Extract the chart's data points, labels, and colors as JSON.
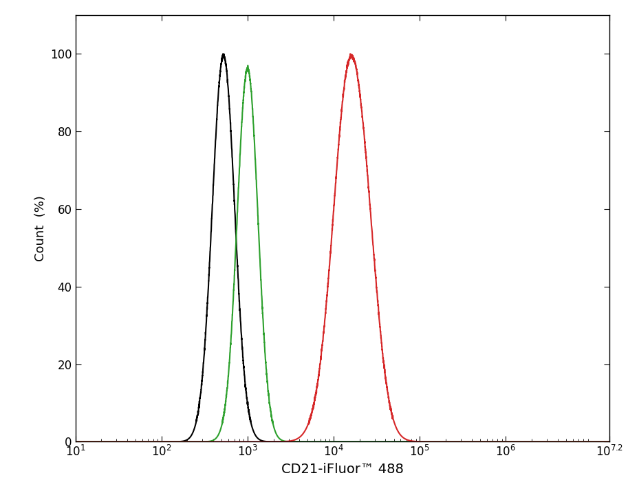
{
  "xlabel": "CD21-iFluor™ 488",
  "ylabel": "Count  (%)",
  "xlim_log": [
    1,
    7.2
  ],
  "ylim": [
    0,
    110
  ],
  "yticks": [
    0,
    20,
    40,
    60,
    80,
    100
  ],
  "xticks_log": [
    1,
    2,
    3,
    4,
    5,
    6,
    7.2
  ],
  "background_color": "#ffffff",
  "curves": {
    "black": {
      "color": "#000000",
      "mean_log": 2.72,
      "sigma_log": 0.13,
      "peak": 100
    },
    "green": {
      "color": "#2ca02c",
      "mean_log": 3.0,
      "sigma_log": 0.12,
      "peak": 97
    },
    "red": {
      "color": "#d62728",
      "mean_log": 4.2,
      "sigma_log": 0.2,
      "peak": 100
    }
  },
  "linewidth": 1.5,
  "xlabel_fontsize": 14,
  "ylabel_fontsize": 13,
  "tick_fontsize": 12
}
